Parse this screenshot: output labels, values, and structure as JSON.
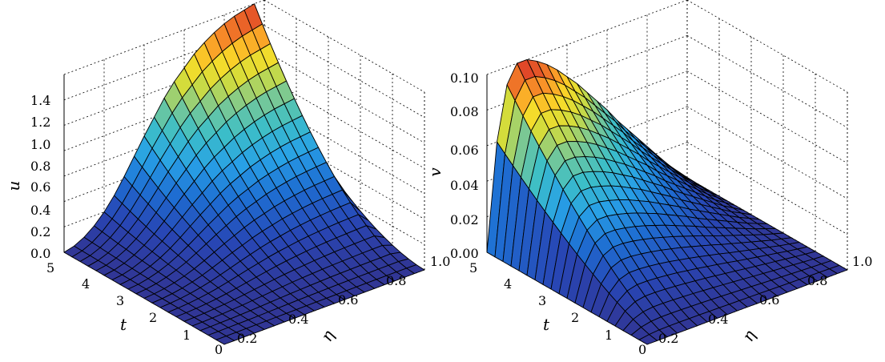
{
  "chart_data": [
    {
      "type": "surface",
      "zlabel": "u",
      "xlabel": "t",
      "ylabel": "η",
      "xlim": [
        0,
        5
      ],
      "ylim": [
        0,
        1.0
      ],
      "zlim": [
        0,
        1.4
      ],
      "x_ticks": [
        "0",
        "1",
        "2",
        "3",
        "4",
        "5"
      ],
      "y_ticks": [
        "0.2",
        "0.4",
        "0.6",
        "0.8",
        "1.0"
      ],
      "z_ticks": [
        "0.0",
        "0.2",
        "0.4",
        "0.6",
        "0.8",
        "1.0",
        "1.2",
        "1.4"
      ],
      "t": [
        0,
        0.5,
        1,
        1.5,
        2,
        2.5,
        3,
        3.5,
        4,
        4.5,
        5
      ],
      "eta": [
        0,
        0.05,
        0.1,
        0.15,
        0.2,
        0.25,
        0.3,
        0.35,
        0.4,
        0.45,
        0.5,
        0.55,
        0.6,
        0.65,
        0.7,
        0.75,
        0.8,
        0.85,
        0.9,
        0.95,
        1.0
      ],
      "surface_description": "u is ~0 for small t across eta; rises with t; at t=5 increases from 0 at eta=0 to ~1.4 near eta=0.95, with a sharp drop at eta=1.0 boundary",
      "u_at_t5": [
        0.0,
        0.02,
        0.06,
        0.12,
        0.2,
        0.3,
        0.42,
        0.55,
        0.68,
        0.8,
        0.92,
        1.02,
        1.1,
        1.18,
        1.24,
        1.29,
        1.33,
        1.36,
        1.38,
        1.4,
        0.0
      ]
    },
    {
      "type": "surface",
      "zlabel": "v",
      "xlabel": "t",
      "ylabel": "η",
      "xlim": [
        0,
        5
      ],
      "ylim": [
        0,
        1.0
      ],
      "zlim": [
        0,
        0.1
      ],
      "x_ticks": [
        "0",
        "1",
        "2",
        "3",
        "4",
        "5"
      ],
      "y_ticks": [
        "0.2",
        "0.4",
        "0.6",
        "0.8",
        "1.0"
      ],
      "z_ticks": [
        "0.00",
        "0.02",
        "0.04",
        "0.06",
        "0.08",
        "0.10"
      ],
      "t": [
        0,
        0.5,
        1,
        1.5,
        2,
        2.5,
        3,
        3.5,
        4,
        4.5,
        5
      ],
      "eta": [
        0,
        0.05,
        0.1,
        0.15,
        0.2,
        0.25,
        0.3,
        0.35,
        0.4,
        0.45,
        0.5,
        0.55,
        0.6,
        0.65,
        0.7,
        0.75,
        0.8,
        0.85,
        0.9,
        0.95,
        1.0
      ],
      "surface_description": "v is 0 at t=0 and at eta=0,1; grows with t; at t=5 peaks ~0.10 near eta≈0.2 and decays toward eta=1.0",
      "v_at_t5": [
        0.0,
        0.06,
        0.09,
        0.1,
        0.1,
        0.097,
        0.093,
        0.088,
        0.082,
        0.076,
        0.069,
        0.062,
        0.055,
        0.047,
        0.04,
        0.033,
        0.026,
        0.019,
        0.012,
        0.006,
        0.0
      ]
    }
  ]
}
